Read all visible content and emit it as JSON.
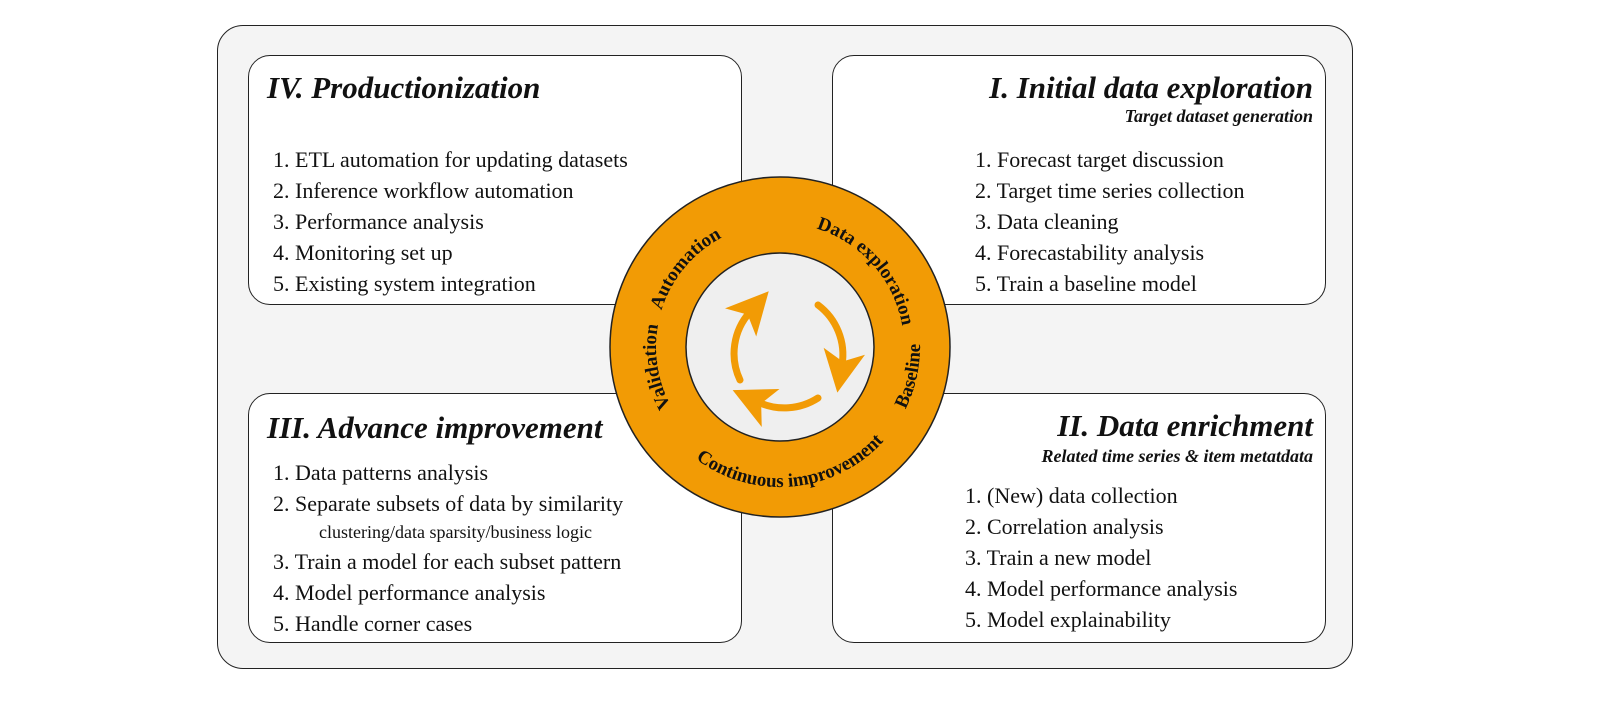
{
  "colors": {
    "accent": "#f29b05",
    "panel": "#f4f4f4",
    "inner": "#efefef"
  },
  "quadrants": {
    "productionization": {
      "title": "IV.  Productionization",
      "items": [
        "1. ETL automation for updating datasets",
        "2. Inference workflow automation",
        "3. Performance analysis",
        "4. Monitoring set up",
        "5. Existing system integration"
      ]
    },
    "exploration": {
      "title": "I.  Initial data exploration",
      "subtitle": "Target dataset generation",
      "items": [
        "1. Forecast target discussion",
        "2. Target time series collection",
        "3. Data cleaning",
        "4. Forecastability analysis",
        "5. Train a baseline model"
      ]
    },
    "improvement": {
      "title": "III.  Advance improvement",
      "items": [
        "1. Data patterns analysis",
        "2. Separate subsets of data by similarity",
        "clustering/data sparsity/business logic",
        "3. Train a model for each subset pattern",
        "4. Model performance analysis",
        "5. Handle corner cases"
      ]
    },
    "enrichment": {
      "title": "II.  Data enrichment",
      "subtitle": "Related time series  &  item metatdata",
      "items": [
        "1. (New) data collection",
        "2. Correlation analysis",
        "3. Train a new model",
        "4. Model performance analysis",
        "5. Model explainability"
      ]
    }
  },
  "cycle": {
    "labels": {
      "automation": "Automation",
      "data_exploration": "Data exploration",
      "baseline": "Baseline",
      "continuous": "Continuous improvement",
      "validation": "Validation"
    },
    "arrow_icon": "cycle-arrows"
  }
}
